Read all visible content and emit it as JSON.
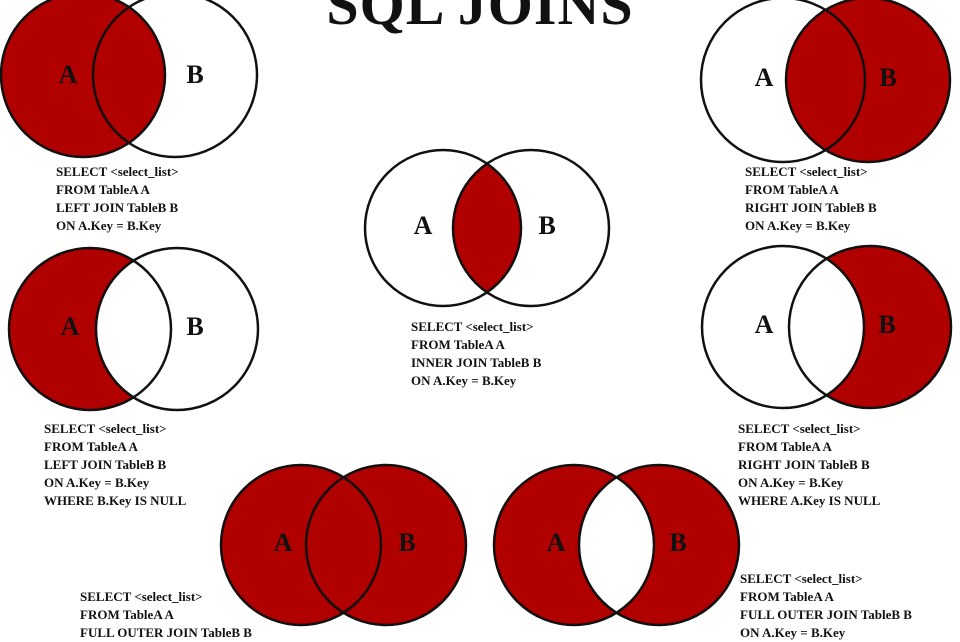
{
  "title": "SQL JOINS",
  "colors": {
    "fill": "#b00000",
    "stroke": "#111111",
    "background": "#ffffff"
  },
  "diagrams": [
    {
      "id": "left-join",
      "shaded": "A",
      "labels": {
        "a": "A",
        "b": "B"
      },
      "sql": [
        "SELECT <select_list>",
        "FROM TableA A",
        "LEFT JOIN TableB B",
        "ON A.Key = B.Key"
      ]
    },
    {
      "id": "right-join",
      "shaded": "B",
      "labels": {
        "a": "A",
        "b": "B"
      },
      "sql": [
        "SELECT <select_list>",
        "FROM TableA A",
        "RIGHT JOIN TableB B",
        "ON A.Key = B.Key"
      ]
    },
    {
      "id": "inner-join",
      "shaded": "intersection",
      "labels": {
        "a": "A",
        "b": "B"
      },
      "sql": [
        "SELECT <select_list>",
        "FROM TableA A",
        "INNER JOIN TableB B",
        "ON A.Key = B.Key"
      ]
    },
    {
      "id": "left-excluding-join",
      "shaded": "A only",
      "labels": {
        "a": "A",
        "b": "B"
      },
      "sql": [
        "SELECT <select_list>",
        "FROM TableA A",
        "LEFT JOIN TableB B",
        "ON A.Key = B.Key",
        "WHERE B.Key IS NULL"
      ]
    },
    {
      "id": "right-excluding-join",
      "shaded": "B only",
      "labels": {
        "a": "A",
        "b": "B"
      },
      "sql": [
        "SELECT <select_list>",
        "FROM TableA A",
        "RIGHT JOIN TableB B",
        "ON A.Key = B.Key",
        "WHERE A.Key IS NULL"
      ]
    },
    {
      "id": "full-outer-join",
      "shaded": "A and B",
      "labels": {
        "a": "A",
        "b": "B"
      },
      "sql": [
        "SELECT <select_list>",
        "FROM TableA A",
        "FULL OUTER JOIN TableB B"
      ]
    },
    {
      "id": "full-outer-excluding-join",
      "shaded": "A and B except intersection",
      "labels": {
        "a": "A",
        "b": "B"
      },
      "sql": [
        "SELECT <select_list>",
        "FROM TableA A",
        "FULL OUTER JOIN TableB B",
        "ON A.Key = B.Key"
      ]
    }
  ]
}
